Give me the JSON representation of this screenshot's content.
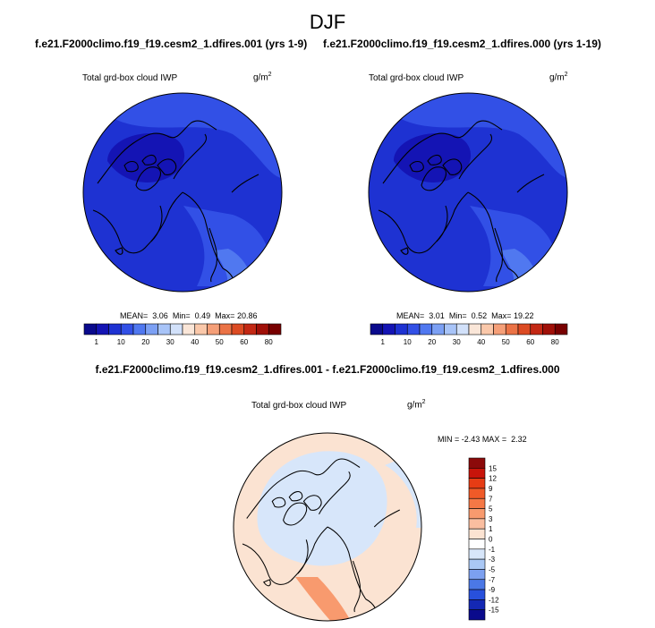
{
  "chart_data": {
    "figure_title": "DJF",
    "panels": [
      {
        "id": "case1",
        "title": "f.e21.F2000climo.f19_f19.cesm2_1.dfires.001 (yrs 1-9)",
        "variable": "Total grd-box cloud IWP",
        "units_base": "g/m",
        "units_exp": "2",
        "type": "heatmap",
        "projection": "north polar stereographic",
        "stats": {
          "mean_label": "MEAN=",
          "mean": "3.06",
          "min_label": "Min=",
          "min": "0.49",
          "max_label": "Max=",
          "max": "20.86"
        },
        "colorbar": {
          "orientation": "horizontal",
          "levels": [
            "1",
            "10",
            "20",
            "30",
            "40",
            "50",
            "60",
            "80"
          ],
          "level_values": [
            1,
            5,
            10,
            15,
            20,
            25,
            30,
            35,
            40,
            45,
            50,
            55,
            60,
            70,
            80
          ],
          "colors": [
            "#0a0a8c",
            "#1414b4",
            "#1e32d2",
            "#3250e6",
            "#5078f0",
            "#7ca0f4",
            "#a8c4f8",
            "#d2e1fa",
            "#fae6d8",
            "#fac8aa",
            "#f59f78",
            "#eb7346",
            "#dc4b23",
            "#c32814",
            "#a01008",
            "#780000"
          ]
        }
      },
      {
        "id": "case2",
        "title": "f.e21.F2000climo.f19_f19.cesm2_1.dfires.000 (yrs 1-19)",
        "variable": "Total grd-box cloud IWP",
        "units_base": "g/m",
        "units_exp": "2",
        "type": "heatmap",
        "projection": "north polar stereographic",
        "stats": {
          "mean_label": "MEAN=",
          "mean": "3.01",
          "min_label": "Min=",
          "min": "0.52",
          "max_label": "Max=",
          "max": "19.22"
        },
        "colorbar": {
          "orientation": "horizontal",
          "levels": [
            "1",
            "10",
            "20",
            "30",
            "40",
            "50",
            "60",
            "80"
          ],
          "level_values": [
            1,
            5,
            10,
            15,
            20,
            25,
            30,
            35,
            40,
            45,
            50,
            55,
            60,
            70,
            80
          ],
          "colors": [
            "#0a0a8c",
            "#1414b4",
            "#1e32d2",
            "#3250e6",
            "#5078f0",
            "#7ca0f4",
            "#a8c4f8",
            "#d2e1fa",
            "#fae6d8",
            "#fac8aa",
            "#f59f78",
            "#eb7346",
            "#dc4b23",
            "#c32814",
            "#a01008",
            "#780000"
          ]
        }
      },
      {
        "id": "diff",
        "title": "f.e21.F2000climo.f19_f19.cesm2_1.dfires.001 - f.e21.F2000climo.f19_f19.cesm2_1.dfires.000",
        "variable": "Total grd-box cloud IWP",
        "units_base": "g/m",
        "units_exp": "2",
        "type": "heatmap",
        "projection": "north polar stereographic",
        "stats": {
          "min_label": "MIN =",
          "min": "-2.43",
          "max_label": "MAX =",
          "max": "2.32"
        },
        "colorbar": {
          "orientation": "vertical",
          "levels": [
            "15",
            "12",
            "9",
            "7",
            "5",
            "3",
            "1",
            "0",
            "-1",
            "-3",
            "-5",
            "-7",
            "-9",
            "-12",
            "-15"
          ],
          "colors": [
            "#8c0a0a",
            "#c8140a",
            "#e63c14",
            "#f05a28",
            "#f57846",
            "#f89a6e",
            "#fabea0",
            "#fbe3d2",
            "#ffffff",
            "#d7e6fa",
            "#aac8f5",
            "#7ca0f0",
            "#4b78e6",
            "#2850dc",
            "#1428b4",
            "#0a0a8c"
          ]
        }
      }
    ]
  }
}
